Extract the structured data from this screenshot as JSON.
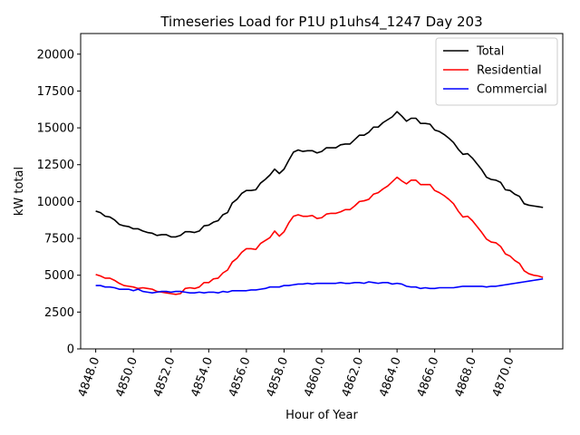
{
  "chart_data": {
    "type": "line",
    "title": "Timeseries Load for P1U p1uhs4_1247  Day 203",
    "xlabel": "Hour of Year",
    "ylabel": "kW total",
    "xlim": [
      4847.2,
      4872.8
    ],
    "ylim": [
      0,
      21400
    ],
    "xticks": [
      4848,
      4850,
      4852,
      4854,
      4856,
      4858,
      4860,
      4862,
      4864,
      4866,
      4868,
      4870
    ],
    "xtick_labels": [
      "4848.0",
      "4850.0",
      "4852.0",
      "4854.0",
      "4856.0",
      "4858.0",
      "4860.0",
      "4862.0",
      "4864.0",
      "4866.0",
      "4868.0",
      "4870.0"
    ],
    "yticks": [
      0,
      2500,
      5000,
      7500,
      10000,
      12500,
      15000,
      17500,
      20000
    ],
    "ytick_labels": [
      "0",
      "2500",
      "5000",
      "7500",
      "10000",
      "12500",
      "15000",
      "17500",
      "20000"
    ],
    "legend_position": "upper right",
    "x": [
      4848.0,
      4848.25,
      4848.5,
      4848.75,
      4849.0,
      4849.25,
      4849.5,
      4849.75,
      4850.0,
      4850.25,
      4850.5,
      4850.75,
      4851.0,
      4851.25,
      4851.5,
      4851.75,
      4852.0,
      4852.25,
      4852.5,
      4852.75,
      4853.0,
      4853.25,
      4853.5,
      4853.75,
      4854.0,
      4854.25,
      4854.5,
      4854.75,
      4855.0,
      4855.25,
      4855.5,
      4855.75,
      4856.0,
      4856.25,
      4856.5,
      4856.75,
      4857.0,
      4857.25,
      4857.5,
      4857.75,
      4858.0,
      4858.25,
      4858.5,
      4858.75,
      4859.0,
      4859.25,
      4859.5,
      4859.75,
      4860.0,
      4860.25,
      4860.5,
      4860.75,
      4861.0,
      4861.25,
      4861.5,
      4861.75,
      4862.0,
      4862.25,
      4862.5,
      4862.75,
      4863.0,
      4863.25,
      4863.5,
      4863.75,
      4864.0,
      4864.25,
      4864.5,
      4864.75,
      4865.0,
      4865.25,
      4865.5,
      4865.75,
      4866.0,
      4866.25,
      4866.5,
      4866.75,
      4867.0,
      4867.25,
      4867.5,
      4867.75,
      4868.0,
      4868.25,
      4868.5,
      4868.75,
      4869.0,
      4869.25,
      4869.5,
      4869.75,
      4870.0,
      4870.25,
      4870.5,
      4870.75,
      4871.0,
      4871.25,
      4871.5,
      4871.75
    ],
    "series": [
      {
        "name": "Total",
        "color": "#000000",
        "values": [
          9350,
          9250,
          9000,
          8950,
          8750,
          8450,
          8350,
          8300,
          8150,
          8150,
          8000,
          7900,
          7850,
          7700,
          7750,
          7750,
          7600,
          7600,
          7700,
          7950,
          7950,
          7900,
          8000,
          8350,
          8400,
          8600,
          8700,
          9100,
          9250,
          9900,
          10150,
          10550,
          10750,
          10750,
          10800,
          11250,
          11500,
          11800,
          12200,
          11900,
          12200,
          12800,
          13350,
          13500,
          13400,
          13450,
          13450,
          13300,
          13400,
          13650,
          13650,
          13650,
          13850,
          13900,
          13900,
          14200,
          14500,
          14500,
          14700,
          15050,
          15050,
          15350,
          15550,
          15750,
          16100,
          15800,
          15450,
          15650,
          15650,
          15300,
          15300,
          15250,
          14850,
          14750,
          14550,
          14300,
          14000,
          13550,
          13200,
          13250,
          12950,
          12550,
          12150,
          11650,
          11500,
          11450,
          11300,
          10800,
          10750,
          10500,
          10350,
          9850,
          9750,
          9700,
          9650,
          9600
        ]
      },
      {
        "name": "Residential",
        "color": "#ff0000",
        "values": [
          5050,
          4950,
          4800,
          4800,
          4650,
          4450,
          4300,
          4250,
          4200,
          4100,
          4150,
          4100,
          4050,
          3900,
          3850,
          3800,
          3750,
          3700,
          3750,
          4100,
          4150,
          4100,
          4200,
          4500,
          4500,
          4750,
          4800,
          5150,
          5350,
          5900,
          6150,
          6550,
          6800,
          6800,
          6750,
          7150,
          7350,
          7550,
          8000,
          7650,
          7950,
          8550,
          9000,
          9100,
          9000,
          9000,
          9050,
          8850,
          8900,
          9150,
          9200,
          9200,
          9300,
          9450,
          9450,
          9700,
          10000,
          10050,
          10150,
          10500,
          10600,
          10850,
          11050,
          11350,
          11650,
          11400,
          11200,
          11450,
          11450,
          11150,
          11150,
          11150,
          10750,
          10600,
          10400,
          10150,
          9850,
          9350,
          8950,
          9000,
          8700,
          8300,
          7900,
          7450,
          7250,
          7200,
          6950,
          6450,
          6300,
          6000,
          5800,
          5300,
          5100,
          5000,
          4950,
          4850
        ]
      },
      {
        "name": "Commercial",
        "color": "#0000ff",
        "values": [
          4300,
          4300,
          4200,
          4200,
          4150,
          4050,
          4050,
          4050,
          3950,
          4050,
          3900,
          3850,
          3800,
          3850,
          3900,
          3900,
          3850,
          3900,
          3900,
          3850,
          3800,
          3800,
          3850,
          3800,
          3850,
          3850,
          3800,
          3900,
          3850,
          3950,
          3950,
          3950,
          3950,
          4000,
          4000,
          4050,
          4100,
          4200,
          4200,
          4200,
          4300,
          4300,
          4350,
          4400,
          4400,
          4450,
          4400,
          4450,
          4450,
          4450,
          4450,
          4450,
          4500,
          4450,
          4450,
          4500,
          4500,
          4450,
          4550,
          4500,
          4450,
          4500,
          4500,
          4400,
          4450,
          4400,
          4250,
          4200,
          4200,
          4100,
          4150,
          4100,
          4100,
          4150,
          4150,
          4150,
          4150,
          4200,
          4250,
          4250,
          4250,
          4250,
          4250,
          4200,
          4250,
          4250,
          4300,
          4350,
          4400,
          4450,
          4500,
          4550,
          4600,
          4650,
          4700,
          4750
        ]
      }
    ]
  }
}
